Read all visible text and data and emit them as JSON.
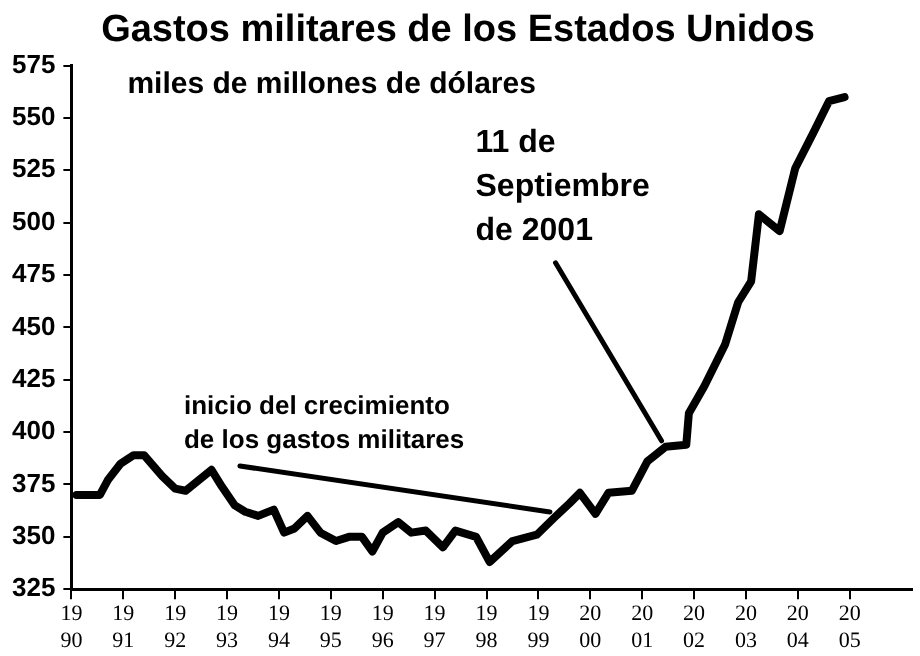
{
  "chart_data": {
    "type": "line",
    "title": "Gastos militares de los Estados Unidos",
    "subtitle": "miles de millones de dólares",
    "annotations": [
      {
        "text": "inicio del crecimiento\nde los gastos militares",
        "x": 1999.3,
        "y": 359
      },
      {
        "text": "11 de\nSeptiembre\nde 2001",
        "x": 2001.45,
        "y": 393
      }
    ],
    "series": [
      {
        "color": "#000000",
        "x": [
          1990.1,
          1990.55,
          1990.7,
          1990.95,
          1991.2,
          1991.4,
          1991.75,
          1992.0,
          1992.2,
          1992.45,
          1992.7,
          1992.9,
          1993.15,
          1993.35,
          1993.6,
          1993.9,
          1994.1,
          1994.3,
          1994.55,
          1994.8,
          1995.1,
          1995.35,
          1995.6,
          1995.8,
          1996.0,
          1996.3,
          1996.55,
          1996.83,
          1997.16,
          1997.4,
          1997.8,
          1998.06,
          1998.5,
          1998.97,
          1999.3,
          1999.6,
          1999.8,
          2000.1,
          2000.35,
          2000.8,
          2001.1,
          2001.45,
          2001.85,
          2001.9,
          2002.2,
          2002.6,
          2002.85,
          2003.1,
          2003.25,
          2003.65,
          2003.95,
          2004.3,
          2004.6,
          2004.9
        ],
        "values": [
          370,
          370,
          377,
          385,
          389,
          389,
          379,
          373,
          372,
          377,
          382,
          374,
          365,
          362,
          360,
          363,
          352,
          354,
          360,
          352,
          348,
          350,
          350,
          343,
          352,
          357,
          352,
          353,
          345,
          353,
          350,
          338,
          348,
          351,
          359,
          366,
          371,
          361,
          371,
          372,
          386,
          393,
          394,
          409,
          422,
          442,
          462,
          472,
          504,
          496,
          526,
          543,
          558,
          560
        ]
      }
    ],
    "xlim": [
      1990,
      2006.2
    ],
    "xticks": [
      1990,
      1991,
      1992,
      1993,
      1994,
      1995,
      1996,
      1997,
      1998,
      1999,
      2000,
      2001,
      2002,
      2003,
      2004,
      2005
    ],
    "ylim": [
      325,
      575
    ],
    "yticks": [
      325,
      350,
      375,
      400,
      425,
      450,
      475,
      500,
      525,
      550,
      575
    ],
    "grid": false,
    "legend": false,
    "marker": "none",
    "line_style": "solid"
  }
}
